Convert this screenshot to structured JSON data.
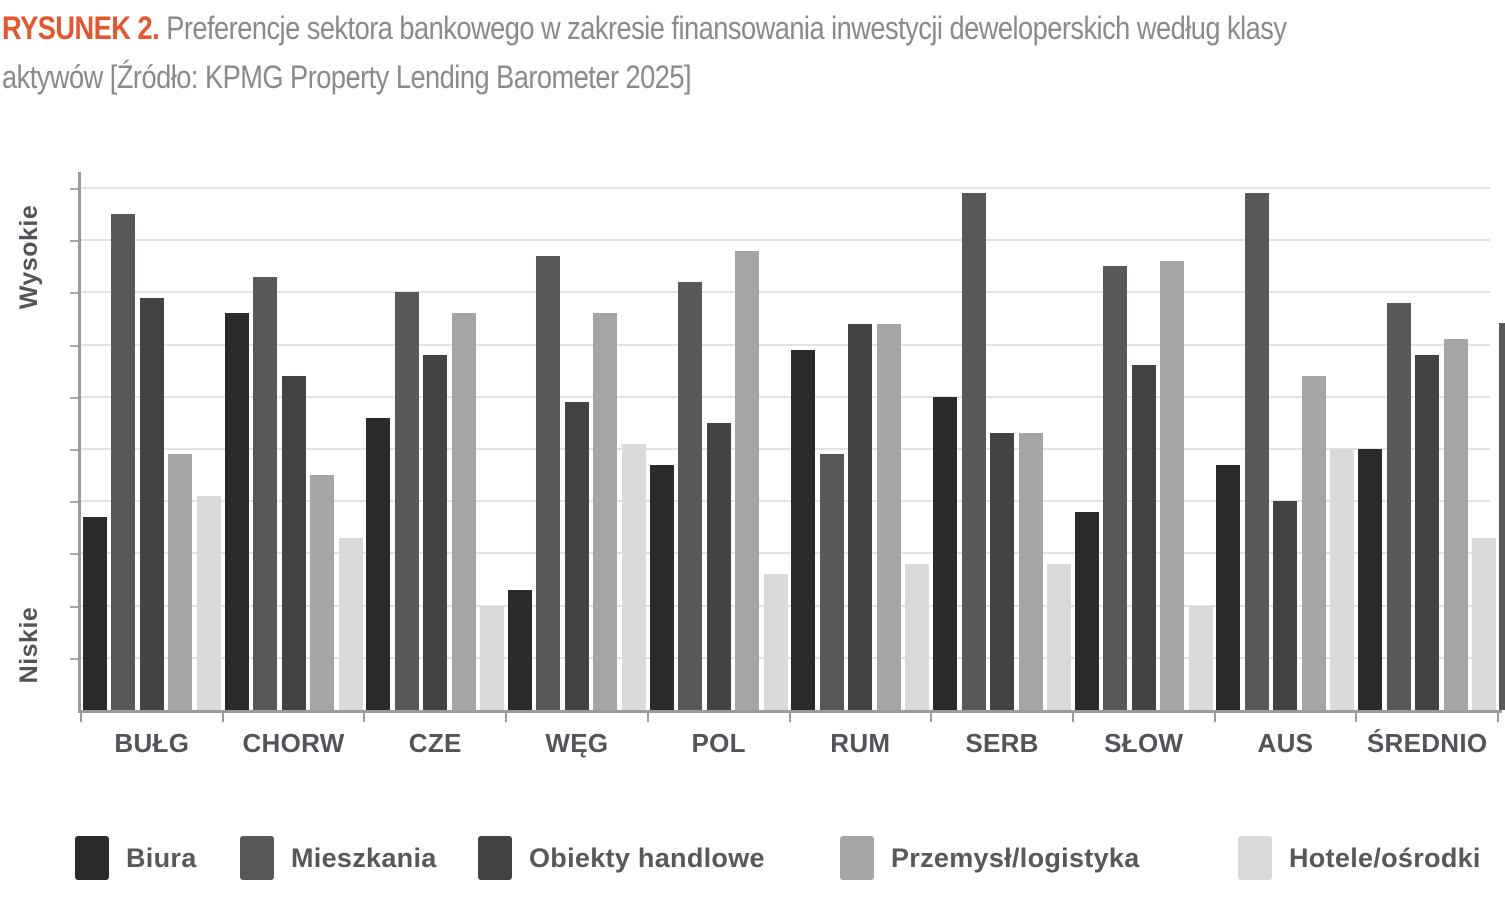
{
  "title": {
    "figure_label": "RYSUNEK 2.",
    "line1": "Preferencje sektora bankowego w zakresie finansowania inwestycji deweloperskich według klasy",
    "line2": "aktywów [Źródło: KPMG Property Lending Barometer 2025]"
  },
  "chart_data": {
    "type": "bar",
    "title": "Preferencje sektora bankowego w zakresie finansowania inwestycji deweloperskich według klasy aktywów",
    "source": "KPMG Property Lending Barometer 2025",
    "categories": [
      "BUŁG",
      "CHORW",
      "CZE",
      "WĘG",
      "POL",
      "RUM",
      "SERB",
      "SŁOW",
      "AUS",
      "ŚREDNIO"
    ],
    "series": [
      {
        "name": "Biura",
        "color": "#2d2a2b",
        "values": [
          3.7,
          7.6,
          5.6,
          2.3,
          4.7,
          6.9,
          6.0,
          3.8,
          4.7,
          5.0
        ]
      },
      {
        "name": "Mieszkania",
        "color": "#59575a",
        "values": [
          9.5,
          8.3,
          8.0,
          8.7,
          8.2,
          4.9,
          9.9,
          8.5,
          9.9,
          7.8
        ]
      },
      {
        "name": "Obiekty handlowe",
        "color": "#454245",
        "values": [
          7.9,
          6.4,
          6.8,
          5.9,
          5.5,
          7.4,
          5.3,
          6.6,
          4.0,
          6.8
        ]
      },
      {
        "name": "Przemysł/logistyka",
        "color": "#a5a5a5",
        "values": [
          4.9,
          4.5,
          7.6,
          7.6,
          8.8,
          7.4,
          5.3,
          8.6,
          6.4,
          7.1
        ]
      },
      {
        "name": "Hotele/ośrodki",
        "color": "#dadada",
        "values": [
          4.1,
          3.3,
          2.0,
          5.1,
          2.6,
          2.8,
          2.8,
          2.0,
          5.0,
          3.3
        ]
      }
    ],
    "yaxis": {
      "top_label": "Wysokie",
      "bottom_label": "Niskie",
      "ylim": [
        0,
        10
      ],
      "gridline_count": 10,
      "numeric_labels_shown": false
    },
    "grid": true,
    "legend_position": "bottom",
    "cropped_partial_bar_right_edge": {
      "top_value": 7.4,
      "color": "#59575a"
    }
  },
  "colors": {
    "accent_orange": "#e5562c",
    "title_gray": "#8a8a8d",
    "axis_text": "#55535a",
    "axis_line": "#9b9b9b",
    "gridline": "#e3e3e3",
    "background": "#ffffff"
  }
}
